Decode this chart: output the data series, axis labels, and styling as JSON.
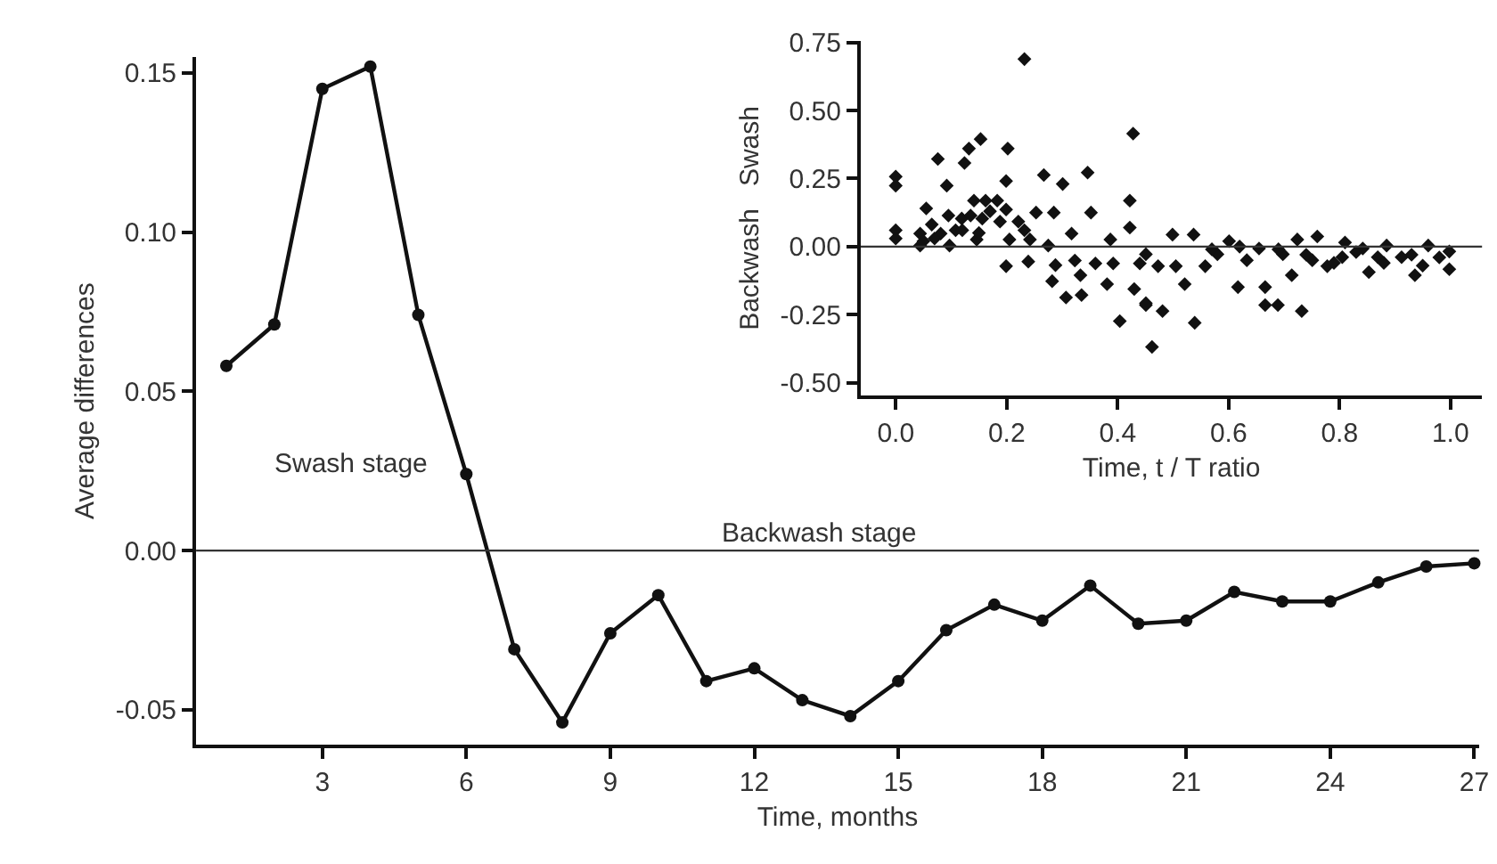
{
  "chart_data": [
    {
      "type": "line",
      "xlabel": "Time, months",
      "ylabel": "Average differences",
      "marker": "circle",
      "line_style": "solid",
      "x": [
        1,
        2,
        3,
        4,
        5,
        6,
        7,
        8,
        9,
        10,
        11,
        12,
        13,
        14,
        15,
        16,
        17,
        18,
        19,
        20,
        21,
        22,
        23,
        24,
        25,
        26,
        27
      ],
      "series": [
        {
          "color": "#111111",
          "values": [
            0.058,
            0.071,
            0.145,
            0.152,
            0.074,
            0.024,
            -0.031,
            -0.054,
            -0.026,
            -0.014,
            -0.041,
            -0.037,
            -0.047,
            -0.052,
            -0.041,
            -0.025,
            -0.017,
            -0.022,
            -0.011,
            -0.023,
            -0.022,
            -0.013,
            -0.016,
            -0.016,
            -0.01,
            -0.005,
            -0.004
          ]
        }
      ],
      "xlim": [
        0.37,
        27.1
      ],
      "xticks": [
        3,
        6,
        9,
        12,
        15,
        18,
        21,
        24,
        27
      ],
      "ylim": [
        -0.061,
        0.155
      ],
      "yticks": [
        {
          "value": 0.15,
          "label": "0.15"
        },
        {
          "value": 0.1,
          "label": "0.10"
        },
        {
          "value": 0.05,
          "label": "0.05"
        },
        {
          "value": 0,
          "label": "0.00"
        },
        {
          "value": -0.05,
          "label": "-0.05"
        }
      ],
      "ref_lines": [
        {
          "axis": "y",
          "value": 0,
          "color": "#333333"
        }
      ],
      "annotations": [
        "Swash stage",
        "Backwash stage"
      ]
    },
    {
      "type": "scatter",
      "xlabel": "Time, t / T ratio",
      "ylabel": "Backwash   Swash",
      "marker": "diamond",
      "series": [
        {
          "color": "#111111",
          "x": [
            0,
            0,
            0,
            0,
            0.044,
            0.044,
            0.055,
            0.065,
            0.076,
            0.081,
            0.092,
            0.095,
            0.097,
            0.108,
            0.119,
            0.124,
            0.132,
            0.135,
            0.141,
            0.146,
            0.153,
            0.156,
            0.162,
            0.183,
            0.188,
            0.199,
            0.202,
            0.199,
            0.199,
            0.205,
            0.221,
            0.232,
            0.232,
            0.239,
            0.242,
            0.253,
            0.267,
            0.275,
            0.282,
            0.285,
            0.288,
            0.301,
            0.307,
            0.317,
            0.323,
            0.333,
            0.335,
            0.346,
            0.352,
            0.36,
            0.381,
            0.387,
            0.392,
            0.404,
            0.422,
            0.422,
            0.428,
            0.43,
            0.44,
            0.451,
            0.462,
            0.451,
            0.451,
            0.481,
            0.473,
            0.499,
            0.505,
            0.521,
            0.537,
            0.539,
            0.558,
            0.58,
            0.601,
            0.617,
            0.633,
            0.655,
            0.666,
            0.666,
            0.689,
            0.698,
            0.714,
            0.724,
            0.732,
            0.751,
            0.76,
            0.778,
            0.805,
            0.81,
            0.842,
            0.853,
            0.869,
            0.885,
            0.912,
            0.936,
            0.96,
            0.998,
            0.998,
            0.05,
            0.07,
            0.12,
            0.17,
            0.15,
            0.57,
            0.62,
            0.69,
            0.74,
            0.79,
            0.83,
            0.88,
            0.93,
            0.95,
            0.98
          ],
          "values": [
            0.257,
            0.224,
            0.06,
            0.03,
            0.048,
            0.004,
            0.14,
            0.081,
            0.322,
            0.048,
            0.224,
            0.114,
            0.004,
            0.06,
            0.103,
            0.307,
            0.36,
            0.114,
            0.169,
            0.026,
            0.395,
            0.103,
            0.169,
            0.169,
            0.092,
            0.241,
            0.36,
            0.136,
            -0.072,
            0.026,
            0.092,
            0.06,
            0.689,
            -0.055,
            0.026,
            0.125,
            0.263,
            0.004,
            -0.127,
            0.125,
            -0.068,
            0.23,
            -0.187,
            0.048,
            -0.051,
            -0.105,
            -0.178,
            0.272,
            0.125,
            -0.062,
            -0.138,
            0.026,
            -0.062,
            -0.274,
            0.169,
            0.07,
            0.415,
            -0.156,
            -0.062,
            -0.215,
            -0.369,
            -0.028,
            -0.208,
            -0.237,
            -0.072,
            0.044,
            -0.072,
            -0.138,
            0.044,
            -0.28,
            -0.072,
            -0.028,
            0.02,
            -0.149,
            -0.05,
            -0.007,
            -0.149,
            -0.215,
            -0.215,
            -0.028,
            -0.105,
            0.026,
            -0.237,
            -0.05,
            0.037,
            -0.072,
            -0.039,
            0.015,
            -0.007,
            -0.094,
            -0.039,
            0.004,
            -0.039,
            -0.105,
            0.004,
            -0.018,
            -0.083,
            0.02,
            0.03,
            0.06,
            0.13,
            0.05,
            -0.01,
            0.0,
            -0.01,
            -0.03,
            -0.06,
            -0.02,
            -0.06,
            -0.03,
            -0.07,
            -0.04
          ]
        }
      ],
      "xlim": [
        -0.063,
        1.057
      ],
      "xticks": [
        {
          "value": 0,
          "label": "0.0"
        },
        {
          "value": 0.2,
          "label": "0.2"
        },
        {
          "value": 0.4,
          "label": "0.4"
        },
        {
          "value": 0.6,
          "label": "0.6"
        },
        {
          "value": 0.8,
          "label": "0.8"
        },
        {
          "value": 1,
          "label": "1.0"
        }
      ],
      "ylim": [
        -0.548,
        0.757
      ],
      "yticks": [
        {
          "value": 0.75,
          "label": "0.75"
        },
        {
          "value": 0.5,
          "label": "0.50"
        },
        {
          "value": 0.25,
          "label": "0.25"
        },
        {
          "value": 0,
          "label": "0.00"
        },
        {
          "value": -0.25,
          "label": "-0.25"
        },
        {
          "value": -0.5,
          "label": "-0.50"
        }
      ],
      "ref_lines": [
        {
          "axis": "y",
          "value": 0,
          "color": "#333333"
        }
      ]
    }
  ]
}
